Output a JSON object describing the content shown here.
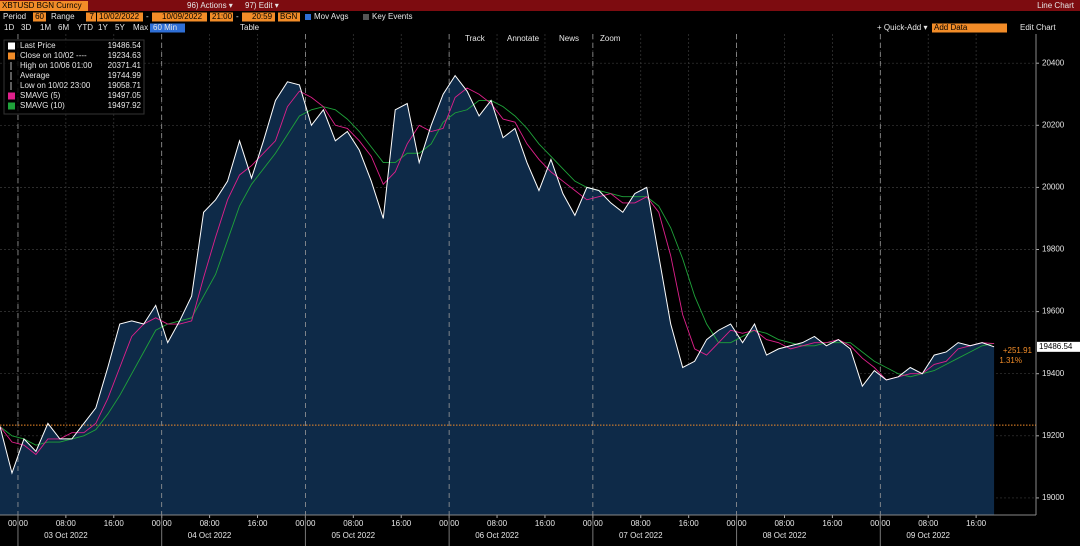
{
  "toolbar": {
    "ticker": "XBTUSD BGN Curncy",
    "actions": "96) Actions ▾",
    "edit": "97) Edit ▾",
    "view": "Line Chart",
    "period_label": "Period",
    "period": "60",
    "range_label": "Range",
    "range": "7",
    "start": "10/02/2022",
    "dash": "-",
    "end": "10/09/2022",
    "time_start": "21:00",
    "time_end": "20:59",
    "source": "BGN",
    "mov_avgs": "Mov Avgs",
    "key_events": "Key Events",
    "ranges": [
      "1D",
      "3D",
      "1M",
      "6M",
      "YTD",
      "1Y",
      "5Y",
      "Max"
    ],
    "interval": "60 Min",
    "table": "Table",
    "quick_add": "+ Quick-Add ▾",
    "add_data": "Add Data",
    "edit_chart": "Edit Chart",
    "tools": [
      "Track",
      "Annotate",
      "News",
      "Zoom"
    ]
  },
  "chart_data": {
    "type": "line",
    "x": [
      "2022-10-02 21:00",
      "2022-10-02 23:00",
      "2022-10-03 01:00",
      "2022-10-03 03:00",
      "2022-10-03 05:00",
      "2022-10-03 07:00",
      "2022-10-03 09:00",
      "2022-10-03 11:00",
      "2022-10-03 13:00",
      "2022-10-03 15:00",
      "2022-10-03 17:00",
      "2022-10-03 19:00",
      "2022-10-03 21:00",
      "2022-10-03 23:00",
      "2022-10-04 01:00",
      "2022-10-04 03:00",
      "2022-10-04 05:00",
      "2022-10-04 07:00",
      "2022-10-04 09:00",
      "2022-10-04 11:00",
      "2022-10-04 13:00",
      "2022-10-04 15:00",
      "2022-10-04 17:00",
      "2022-10-04 19:00",
      "2022-10-04 21:00",
      "2022-10-04 23:00",
      "2022-10-05 01:00",
      "2022-10-05 03:00",
      "2022-10-05 05:00",
      "2022-10-05 07:00",
      "2022-10-05 09:00",
      "2022-10-05 11:00",
      "2022-10-05 13:00",
      "2022-10-05 15:00",
      "2022-10-05 17:00",
      "2022-10-05 19:00",
      "2022-10-05 21:00",
      "2022-10-05 23:00",
      "2022-10-06 01:00",
      "2022-10-06 03:00",
      "2022-10-06 05:00",
      "2022-10-06 07:00",
      "2022-10-06 09:00",
      "2022-10-06 11:00",
      "2022-10-06 13:00",
      "2022-10-06 15:00",
      "2022-10-06 17:00",
      "2022-10-06 19:00",
      "2022-10-06 21:00",
      "2022-10-06 23:00",
      "2022-10-07 01:00",
      "2022-10-07 03:00",
      "2022-10-07 05:00",
      "2022-10-07 07:00",
      "2022-10-07 09:00",
      "2022-10-07 11:00",
      "2022-10-07 13:00",
      "2022-10-07 15:00",
      "2022-10-07 17:00",
      "2022-10-07 19:00",
      "2022-10-07 21:00",
      "2022-10-07 23:00",
      "2022-10-08 01:00",
      "2022-10-08 03:00",
      "2022-10-08 05:00",
      "2022-10-08 07:00",
      "2022-10-08 09:00",
      "2022-10-08 11:00",
      "2022-10-08 13:00",
      "2022-10-08 15:00",
      "2022-10-08 17:00",
      "2022-10-08 19:00",
      "2022-10-08 21:00",
      "2022-10-08 23:00",
      "2022-10-09 01:00",
      "2022-10-09 03:00",
      "2022-10-09 05:00",
      "2022-10-09 07:00",
      "2022-10-09 09:00",
      "2022-10-09 11:00",
      "2022-10-09 13:00",
      "2022-10-09 15:00",
      "2022-10-09 17:00",
      "2022-10-09 19:00"
    ],
    "series": [
      {
        "name": "Last Price",
        "color": "#ffffff",
        "area_color": "#0e2a48",
        "values": [
          19230,
          19080,
          19190,
          19150,
          19240,
          19190,
          19190,
          19240,
          19290,
          19420,
          19560,
          19570,
          19560,
          19620,
          19500,
          19570,
          19650,
          19920,
          19960,
          20020,
          20150,
          20030,
          20150,
          20280,
          20340,
          20330,
          20200,
          20250,
          20150,
          20180,
          20120,
          20020,
          19900,
          20250,
          20270,
          20080,
          20200,
          20300,
          20360,
          20310,
          20230,
          20280,
          20160,
          20190,
          20080,
          19990,
          20090,
          19980,
          19910,
          20000,
          19990,
          19950,
          19920,
          19980,
          20000,
          19780,
          19560,
          19420,
          19440,
          19510,
          19540,
          19560,
          19500,
          19560,
          19460,
          19480,
          19490,
          19500,
          19520,
          19490,
          19510,
          19480,
          19360,
          19410,
          19380,
          19390,
          19420,
          19400,
          19460,
          19470,
          19500,
          19490,
          19500,
          19486.54
        ]
      },
      {
        "name": "SMAVG (5)",
        "color": "#e0208c",
        "values": [
          19230,
          19180,
          19170,
          19140,
          19190,
          19190,
          19210,
          19210,
          19240,
          19320,
          19420,
          19520,
          19560,
          19580,
          19560,
          19560,
          19570,
          19710,
          19840,
          19960,
          20040,
          20070,
          20110,
          20150,
          20260,
          20310,
          20290,
          20260,
          20200,
          20190,
          20150,
          20100,
          20010,
          20050,
          20140,
          20200,
          20180,
          20190,
          20290,
          20320,
          20300,
          20270,
          20220,
          20210,
          20140,
          20090,
          20050,
          20020,
          19990,
          19960,
          19970,
          19980,
          19950,
          19950,
          19970,
          19920,
          19780,
          19590,
          19480,
          19460,
          19500,
          19540,
          19530,
          19540,
          19510,
          19500,
          19480,
          19490,
          19500,
          19500,
          19510,
          19490,
          19450,
          19420,
          19380,
          19390,
          19400,
          19400,
          19430,
          19440,
          19480,
          19490,
          19500,
          19497.05
        ]
      },
      {
        "name": "SMAVG (10)",
        "color": "#1fa33a",
        "values": [
          19230,
          19200,
          19190,
          19170,
          19180,
          19180,
          19190,
          19200,
          19220,
          19270,
          19330,
          19400,
          19470,
          19540,
          19560,
          19570,
          19580,
          19650,
          19720,
          19830,
          19940,
          20010,
          20060,
          20110,
          20170,
          20230,
          20250,
          20260,
          20250,
          20220,
          20180,
          20130,
          20080,
          20080,
          20110,
          20110,
          20140,
          20210,
          20240,
          20250,
          20280,
          20280,
          20260,
          20230,
          20190,
          20140,
          20100,
          20060,
          20020,
          20000,
          19990,
          19980,
          19970,
          19970,
          19970,
          19940,
          19870,
          19770,
          19650,
          19560,
          19500,
          19500,
          19520,
          19540,
          19530,
          19510,
          19500,
          19490,
          19490,
          19500,
          19500,
          19500,
          19470,
          19440,
          19420,
          19400,
          19390,
          19400,
          19410,
          19430,
          19450,
          19470,
          19490,
          19497.92
        ]
      }
    ],
    "stats": [
      {
        "label": "Close on 10/02 ----",
        "value": 19234.63,
        "color": "#f28c28"
      },
      {
        "label": "High on 10/06 01:00",
        "value": 20371.41
      },
      {
        "label": "Average",
        "value": 19744.99
      },
      {
        "label": "Low on 10/02 23:00",
        "value": 19058.71
      }
    ],
    "change_label": "+251.91",
    "change_pct_label": "1.31%",
    "xlim": [
      "2022-10-02 21:00",
      "2022-10-10 02:00"
    ],
    "xticks": [
      {
        "value": "2022-10-03 00:00",
        "label": "00:00"
      },
      {
        "value": "2022-10-03 08:00",
        "label": "08:00"
      },
      {
        "value": "2022-10-03 16:00",
        "label": "16:00"
      },
      {
        "value": "2022-10-04 00:00",
        "label": "00:00"
      },
      {
        "value": "2022-10-04 08:00",
        "label": "08:00"
      },
      {
        "value": "2022-10-04 16:00",
        "label": "16:00"
      },
      {
        "value": "2022-10-05 00:00",
        "label": "00:00"
      },
      {
        "value": "2022-10-05 08:00",
        "label": "08:00"
      },
      {
        "value": "2022-10-05 16:00",
        "label": "16:00"
      },
      {
        "value": "2022-10-06 00:00",
        "label": "00:00"
      },
      {
        "value": "2022-10-06 08:00",
        "label": "08:00"
      },
      {
        "value": "2022-10-06 16:00",
        "label": "16:00"
      },
      {
        "value": "2022-10-07 00:00",
        "label": "00:00"
      },
      {
        "value": "2022-10-07 08:00",
        "label": "08:00"
      },
      {
        "value": "2022-10-07 16:00",
        "label": "16:00"
      },
      {
        "value": "2022-10-08 00:00",
        "label": "00:00"
      },
      {
        "value": "2022-10-08 08:00",
        "label": "08:00"
      },
      {
        "value": "2022-10-08 16:00",
        "label": "16:00"
      },
      {
        "value": "2022-10-09 00:00",
        "label": "00:00"
      },
      {
        "value": "2022-10-09 08:00",
        "label": "08:00"
      },
      {
        "value": "2022-10-09 16:00",
        "label": "16:00"
      }
    ],
    "x_days": [
      {
        "value": "2022-10-03 00:00",
        "label": "03 Oct 2022"
      },
      {
        "value": "2022-10-04 00:00",
        "label": "04 Oct 2022"
      },
      {
        "value": "2022-10-05 00:00",
        "label": "05 Oct 2022"
      },
      {
        "value": "2022-10-06 00:00",
        "label": "06 Oct 2022"
      },
      {
        "value": "2022-10-07 00:00",
        "label": "07 Oct 2022"
      },
      {
        "value": "2022-10-08 00:00",
        "label": "08 Oct 2022"
      },
      {
        "value": "2022-10-09 00:00",
        "label": "09 Oct 2022"
      }
    ],
    "ylim": [
      18945,
      20494
    ],
    "yticks": [
      19000,
      19200,
      19400,
      19600,
      19800,
      20000,
      20200,
      20400
    ],
    "grid": true
  }
}
